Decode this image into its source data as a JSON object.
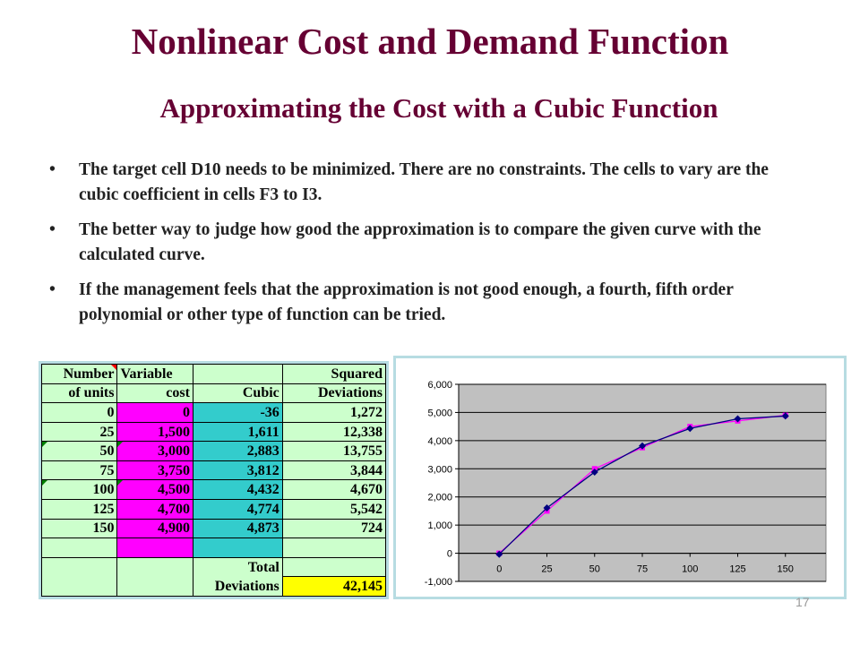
{
  "slide": {
    "title": "Nonlinear Cost and Demand Function",
    "subtitle": "Approximating  the Cost with a Cubic Function",
    "bullet_char": "•",
    "bullets": [
      "The target cell D10 needs to be minimized. There are no constraints. The cells to vary are the cubic coefficient in cells F3 to I3.",
      "The better way to judge how good the approximation is to compare the given curve with the calculated curve.",
      "If the management feels that the approximation is not good enough, a fourth, fifth order polynomial or other type of function can be tried."
    ],
    "page_number": "17"
  },
  "sheet": {
    "header": {
      "r1": [
        "Number",
        "Variable",
        "",
        "Squared"
      ],
      "r2": [
        "of units",
        "cost",
        "Cubic",
        "Deviations"
      ]
    },
    "rows": [
      [
        "0",
        "0",
        "-36",
        "1,272"
      ],
      [
        "25",
        "1,500",
        "1,611",
        "12,338"
      ],
      [
        "50",
        "3,000",
        "2,883",
        "13,755"
      ],
      [
        "75",
        "3,750",
        "3,812",
        "3,844"
      ],
      [
        "100",
        "4,500",
        "4,432",
        "4,670"
      ],
      [
        "125",
        "4,700",
        "4,774",
        "5,542"
      ],
      [
        "150",
        "4,900",
        "4,873",
        "724"
      ]
    ],
    "total_label_1": "Total",
    "total_label_2": "Deviations",
    "total_value": "42,145",
    "colors": {
      "light_green": "#ccffcc",
      "magenta": "#ff00ff",
      "turquoise": "#33cccc",
      "yellow": "#ffff00"
    }
  },
  "chart_data": {
    "type": "line",
    "x": [
      0,
      25,
      50,
      75,
      100,
      125,
      150
    ],
    "x_tick_labels": [
      "0",
      "25",
      "50",
      "75",
      "100",
      "125",
      "150"
    ],
    "y_tick_labels": [
      "-1,000",
      "0",
      "1,000",
      "2,000",
      "3,000",
      "4,000",
      "5,000",
      "6,000"
    ],
    "y_ticks": [
      -1000,
      0,
      1000,
      2000,
      3000,
      4000,
      5000,
      6000
    ],
    "ylim": [
      -1000,
      6000
    ],
    "series": [
      {
        "values": [
          0,
          1500,
          3000,
          3750,
          4500,
          4700,
          4900
        ],
        "color": "#ff00ff",
        "marker": "square"
      },
      {
        "values": [
          -36,
          1611,
          2883,
          3812,
          4432,
          4774,
          4873
        ],
        "color": "#000080",
        "marker": "diamond"
      }
    ],
    "plot_background": "#c0c0c0",
    "grid": true,
    "legend": "none",
    "title": "",
    "xlabel": "",
    "ylabel": ""
  }
}
